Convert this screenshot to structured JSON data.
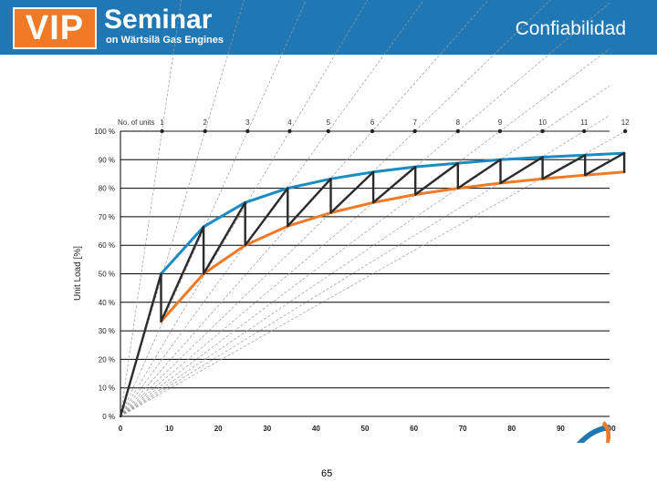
{
  "header": {
    "logo_text": "VIP",
    "logo_title": "Seminar",
    "logo_subtitle": "on Wärtsilä Gas Engines",
    "page_title": "Confiabilidad",
    "background_color": "#1f77b4",
    "logo_color": "#f07a25"
  },
  "footer": {
    "page_number": "65"
  },
  "chart_data": {
    "type": "line",
    "title": "",
    "xlabel": "",
    "ylabel": "Unit Load [%]",
    "xlim": [
      0,
      100
    ],
    "ylim": [
      0,
      100
    ],
    "grid": "horizontal",
    "x_ticks": [
      "0",
      "10",
      "20",
      "30",
      "40",
      "50",
      "60",
      "70",
      "80",
      "90",
      "100"
    ],
    "y_ticks": [
      "0 %",
      "10 %",
      "20 %",
      "30 %",
      "40 %",
      "50 %",
      "60 %",
      "70 %",
      "80 %",
      "90 %",
      "100 %"
    ],
    "units_label": "No. of units",
    "units": [
      "1",
      "2",
      "3",
      "4",
      "5",
      "6",
      "7",
      "8",
      "9",
      "10",
      "11",
      "12"
    ],
    "unit_marker_x": [
      8.5,
      17.3,
      26,
      34.6,
      42.5,
      51.5,
      60.2,
      69,
      77.6,
      86.3,
      94.8,
      103.2
    ],
    "series": [
      {
        "color": "#1a8cc3",
        "x": [
          8.3,
          17,
          25.5,
          34.2,
          43,
          51.7,
          60.3,
          69,
          77.7,
          86.3,
          95,
          103
        ],
        "values": [
          50,
          66.5,
          75,
          80,
          83.3,
          85.7,
          87.5,
          88.8,
          90,
          90.9,
          91.6,
          92.3
        ]
      },
      {
        "color": "#f07a25",
        "x": [
          8.3,
          17,
          25.5,
          34.2,
          43,
          51.7,
          60.3,
          69,
          77.7,
          86.3,
          95,
          103
        ],
        "values": [
          33.3,
          50,
          60,
          66.7,
          71.4,
          75,
          77.8,
          80,
          81.8,
          83.3,
          84.6,
          85.7
        ]
      },
      {
        "color": "#2b2b2b",
        "x": [
          0,
          8.3,
          8.3,
          17,
          17,
          25.5,
          25.5,
          34.2,
          34.2,
          43,
          43,
          51.7,
          51.7,
          60.3,
          60.3,
          69,
          69,
          77.7,
          77.7,
          86.3,
          86.3,
          95,
          95,
          103,
          103
        ],
        "values": [
          0,
          50,
          33.3,
          66.5,
          50,
          75,
          60,
          80,
          66.7,
          83.3,
          71.4,
          85.7,
          75,
          87.5,
          77.8,
          88.8,
          80,
          90,
          81.8,
          90.9,
          83.3,
          91.6,
          84.6,
          92.3,
          85.7
        ]
      }
    ]
  }
}
